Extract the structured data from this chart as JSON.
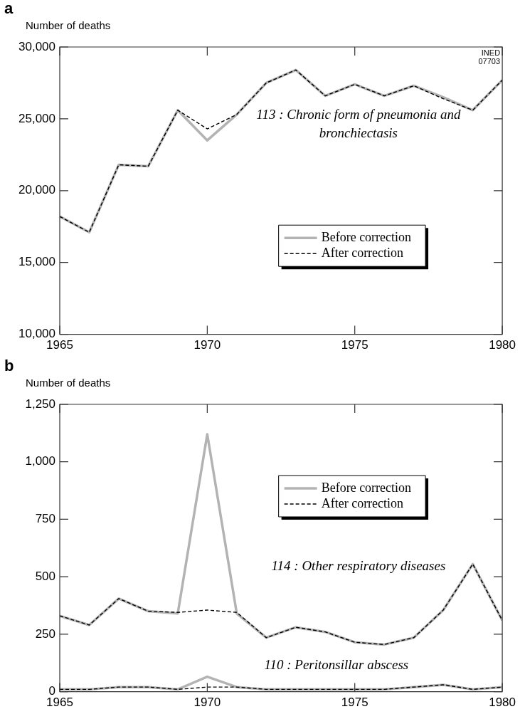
{
  "chart_data": [
    {
      "type": "line",
      "title": "a",
      "ylabel": "Number of deaths",
      "x": [
        1965,
        1966,
        1967,
        1968,
        1969,
        1970,
        1971,
        1972,
        1973,
        1974,
        1975,
        1976,
        1977,
        1978,
        1979,
        1980
      ],
      "series": [
        {
          "name": "Before correction",
          "color": "#b3b3b3",
          "line_style": "solid",
          "values": [
            18200,
            17100,
            21800,
            21700,
            25600,
            23500,
            25300,
            27500,
            28400,
            26600,
            27400,
            26600,
            27300,
            26500,
            25600,
            27700
          ]
        },
        {
          "name": "After correction",
          "color": "#000000",
          "line_style": "dashed",
          "values": [
            18200,
            17100,
            21800,
            21700,
            25600,
            24300,
            25300,
            27500,
            28400,
            26600,
            27400,
            26600,
            27300,
            26400,
            25600,
            27700
          ]
        }
      ],
      "xlim": [
        1965,
        1980
      ],
      "xticks": [
        1965,
        1970,
        1975,
        1980
      ],
      "ylim": [
        10000,
        30000
      ],
      "yticks": [
        {
          "value": 10000,
          "label": "10,000"
        },
        {
          "value": 15000,
          "label": "15,000"
        },
        {
          "value": 20000,
          "label": "20,000"
        },
        {
          "value": 25000,
          "label": "25,000"
        },
        {
          "value": 30000,
          "label": "30,000"
        }
      ],
      "annotations": [
        "INED 07703",
        "113 : Chronic form of pneumonia and bronchiectasis"
      ],
      "legend": "right",
      "marker": "none",
      "grid": false
    },
    {
      "type": "line",
      "title": "b",
      "ylabel": "Number of deaths",
      "x": [
        1965,
        1966,
        1967,
        1968,
        1969,
        1970,
        1971,
        1972,
        1973,
        1974,
        1975,
        1976,
        1977,
        1978,
        1979,
        1980
      ],
      "series": [
        {
          "name": "Before correction",
          "color": "#b3b3b3",
          "line_style": "solid",
          "values": [
            330,
            290,
            405,
            350,
            340,
            1120,
            340,
            235,
            280,
            260,
            215,
            205,
            235,
            355,
            555,
            310
          ]
        },
        {
          "name": "After correction",
          "color": "#000000",
          "line_style": "dashed",
          "values": [
            330,
            290,
            405,
            350,
            345,
            355,
            345,
            235,
            280,
            260,
            215,
            205,
            235,
            355,
            555,
            310
          ]
        },
        {
          "color": "#b3b3b3",
          "line_style": "solid",
          "values": [
            10,
            10,
            20,
            20,
            10,
            65,
            20,
            10,
            10,
            10,
            10,
            10,
            20,
            30,
            10,
            20
          ]
        },
        {
          "color": "#000000",
          "line_style": "dashed",
          "values": [
            10,
            10,
            20,
            20,
            10,
            20,
            20,
            10,
            10,
            10,
            10,
            10,
            20,
            30,
            10,
            20
          ]
        }
      ],
      "xlim": [
        1965,
        1980
      ],
      "xticks": [
        1965,
        1970,
        1975,
        1980
      ],
      "ylim": [
        0,
        1250
      ],
      "yticks": [
        0,
        250,
        500,
        750,
        {
          "value": 1000,
          "label": "1,000"
        },
        {
          "value": 1250,
          "label": "1,250"
        }
      ],
      "annotations": [
        "114 : Other respiratory diseases",
        "110 : Peritonsillar abscess"
      ],
      "legend": "top right",
      "marker": "none",
      "grid": false
    }
  ]
}
